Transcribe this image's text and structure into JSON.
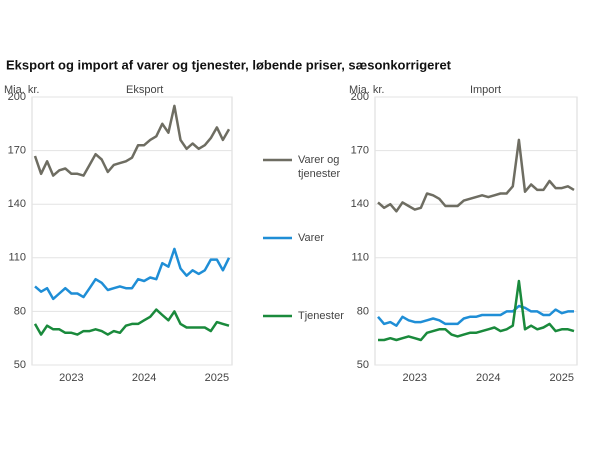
{
  "title": "Eksport og import af varer og tjenester, løbende priser, sæsonkorrigeret",
  "chart_data": [
    {
      "type": "line",
      "subtitle": "Eksport",
      "y_label": "Mia. kr.",
      "categories": [
        null,
        null,
        null,
        null,
        null,
        null,
        "2023",
        null,
        null,
        null,
        null,
        null,
        null,
        null,
        null,
        null,
        null,
        null,
        "2024",
        null,
        null,
        null,
        null,
        null,
        null,
        null,
        null,
        null,
        null,
        null,
        "2025",
        null,
        null
      ],
      "ylim": [
        50,
        200
      ],
      "yticks": [
        50,
        80,
        110,
        140,
        170,
        200
      ],
      "grid": true,
      "series": [
        {
          "name": "Varer og tjenester",
          "color": "#6e6d62",
          "values": [
            167,
            157,
            164,
            156,
            159,
            160,
            157,
            157,
            156,
            162,
            168,
            165,
            158,
            162,
            163,
            164,
            166,
            173,
            173,
            176,
            178,
            185,
            180,
            195,
            176,
            171,
            174,
            171,
            173,
            177,
            183,
            176,
            182
          ]
        },
        {
          "name": "Varer",
          "color": "#1f8ed6",
          "values": [
            94,
            91,
            93,
            87,
            90,
            93,
            90,
            90,
            88,
            93,
            98,
            96,
            92,
            93,
            94,
            93,
            93,
            98,
            97,
            99,
            98,
            107,
            105,
            115,
            104,
            100,
            103,
            101,
            103,
            109,
            109,
            103,
            110
          ]
        },
        {
          "name": "Tjenester",
          "color": "#1a8a3c",
          "values": [
            73,
            67,
            72,
            70,
            70,
            68,
            68,
            67,
            69,
            69,
            70,
            69,
            67,
            69,
            68,
            72,
            73,
            73,
            75,
            77,
            81,
            78,
            75,
            80,
            73,
            71,
            71,
            71,
            71,
            69,
            74,
            73,
            72
          ]
        }
      ]
    },
    {
      "type": "line",
      "subtitle": "Import",
      "y_label": "Mia. kr.",
      "categories": [
        null,
        null,
        null,
        null,
        null,
        null,
        "2023",
        null,
        null,
        null,
        null,
        null,
        null,
        null,
        null,
        null,
        null,
        null,
        "2024",
        null,
        null,
        null,
        null,
        null,
        null,
        null,
        null,
        null,
        null,
        null,
        "2025",
        null,
        null
      ],
      "ylim": [
        50,
        200
      ],
      "yticks": [
        50,
        80,
        110,
        140,
        170,
        200
      ],
      "grid": true,
      "series": [
        {
          "name": "Varer og tjenester",
          "color": "#6e6d62",
          "values": [
            141,
            138,
            140,
            136,
            141,
            139,
            137,
            138,
            146,
            145,
            143,
            139,
            139,
            139,
            142,
            143,
            144,
            145,
            144,
            145,
            146,
            146,
            150,
            176,
            147,
            151,
            148,
            148,
            153,
            149,
            149,
            150,
            148
          ]
        },
        {
          "name": "Varer",
          "color": "#1f8ed6",
          "values": [
            77,
            73,
            74,
            72,
            77,
            75,
            74,
            74,
            75,
            76,
            75,
            73,
            73,
            73,
            76,
            77,
            77,
            78,
            78,
            78,
            78,
            80,
            80,
            83,
            82,
            80,
            80,
            78,
            78,
            81,
            79,
            80,
            80
          ]
        },
        {
          "name": "Tjenester",
          "color": "#1a8a3c",
          "values": [
            64,
            64,
            65,
            64,
            65,
            66,
            65,
            64,
            68,
            69,
            70,
            70,
            67,
            66,
            67,
            68,
            68,
            69,
            70,
            71,
            69,
            70,
            72,
            97,
            70,
            72,
            70,
            71,
            73,
            69,
            70,
            70,
            69
          ]
        }
      ]
    }
  ]
}
